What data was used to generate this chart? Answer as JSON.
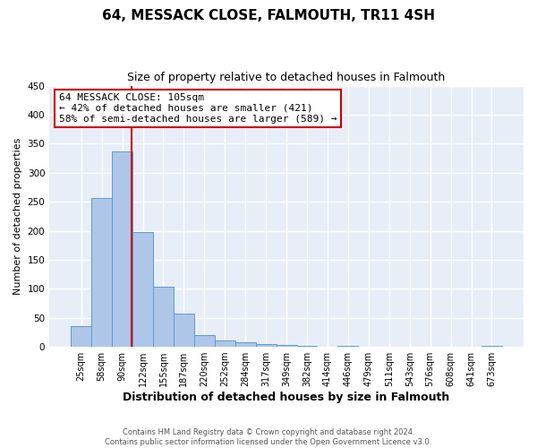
{
  "title": "64, MESSACK CLOSE, FALMOUTH, TR11 4SH",
  "subtitle": "Size of property relative to detached houses in Falmouth",
  "xlabel": "Distribution of detached houses by size in Falmouth",
  "ylabel": "Number of detached properties",
  "bar_labels": [
    "25sqm",
    "58sqm",
    "90sqm",
    "122sqm",
    "155sqm",
    "187sqm",
    "220sqm",
    "252sqm",
    "284sqm",
    "317sqm",
    "349sqm",
    "382sqm",
    "414sqm",
    "446sqm",
    "479sqm",
    "511sqm",
    "543sqm",
    "576sqm",
    "608sqm",
    "641sqm",
    "673sqm"
  ],
  "bar_values": [
    36,
    256,
    337,
    197,
    104,
    57,
    20,
    11,
    8,
    5,
    3,
    2,
    0,
    1,
    0,
    0,
    0,
    0,
    0,
    0,
    2
  ],
  "bar_color": "#aec6e8",
  "bar_edge_color": "#5b9bd5",
  "ylim": [
    0,
    450
  ],
  "yticks": [
    0,
    50,
    100,
    150,
    200,
    250,
    300,
    350,
    400,
    450
  ],
  "property_line_color": "#cc0000",
  "annotation_line1": "64 MESSACK CLOSE: 105sqm",
  "annotation_line2": "← 42% of detached houses are smaller (421)",
  "annotation_line3": "58% of semi-detached houses are larger (589) →",
  "footer_line1": "Contains HM Land Registry data © Crown copyright and database right 2024.",
  "footer_line2": "Contains public sector information licensed under the Open Government Licence v3.0.",
  "plot_bg_color": "#e8eef8",
  "fig_bg_color": "#ffffff",
  "grid_color": "#ffffff",
  "title_fontsize": 11,
  "subtitle_fontsize": 9,
  "tick_label_fontsize": 7,
  "ylabel_fontsize": 8,
  "xlabel_fontsize": 9
}
